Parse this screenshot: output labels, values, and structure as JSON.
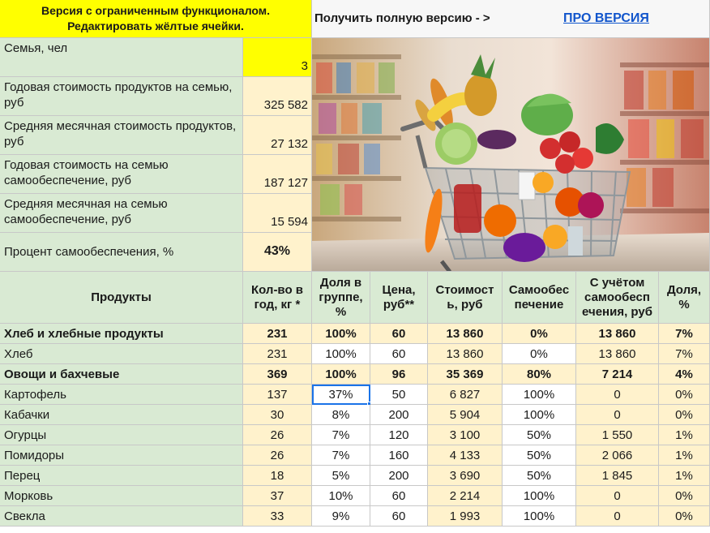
{
  "notice": {
    "line1": "Версия с ограниченным функционалом.",
    "line2": "Редактировать жёлтые ячейки."
  },
  "topbar": {
    "get_full": "Получить полную версию - >",
    "pro_link": "ПРО ВЕРСИЯ"
  },
  "summary": [
    {
      "label": "Семья, чел",
      "value": "3",
      "style": "yellow"
    },
    {
      "label": "Годовая стоимость продуктов на семью, руб",
      "value": "325 582",
      "style": "cream"
    },
    {
      "label": "Средняя месячная стоимость продуктов, руб",
      "value": "27 132",
      "style": "cream"
    },
    {
      "label": "Годовая стоимость на семью самообеспечение, руб",
      "value": "187 127",
      "style": "cream"
    },
    {
      "label": "Средняя месячная на семью самообеспечение, руб",
      "value": "15 594",
      "style": "cream"
    },
    {
      "label": "Процент самообеспечения, %",
      "value": "43%",
      "style": "cream"
    }
  ],
  "table": {
    "headers": [
      "Продукты",
      "Кол-во в год, кг *",
      "Доля в группе, %",
      "Цена, руб**",
      "Стоимост ь, руб",
      "Самообес печение",
      "С учётом самообесп ечения, руб",
      "Доля, %"
    ],
    "rows": [
      {
        "bold": true,
        "cells": [
          "Хлеб и хлебные продукты",
          "231",
          "100%",
          "60",
          "13 860",
          "0%",
          "13 860",
          "7%"
        ]
      },
      {
        "bold": false,
        "cells": [
          "Хлеб",
          "231",
          "100%",
          "60",
          "13 860",
          "0%",
          "13 860",
          "7%"
        ]
      },
      {
        "bold": true,
        "cells": [
          "Овощи и бахчевые",
          "369",
          "100%",
          "96",
          "35 369",
          "80%",
          "7 214",
          "4%"
        ]
      },
      {
        "bold": false,
        "cells": [
          "Картофель",
          "137",
          "37%",
          "50",
          "6 827",
          "100%",
          "0",
          "0%"
        ]
      },
      {
        "bold": false,
        "cells": [
          "Кабачки",
          "30",
          "8%",
          "200",
          "5 904",
          "100%",
          "0",
          "0%"
        ]
      },
      {
        "bold": false,
        "cells": [
          "Огурцы",
          "26",
          "7%",
          "120",
          "3 100",
          "50%",
          "1 550",
          "1%"
        ]
      },
      {
        "bold": false,
        "cells": [
          "Помидоры",
          "26",
          "7%",
          "160",
          "4 133",
          "50%",
          "2 066",
          "1%"
        ]
      },
      {
        "bold": false,
        "cells": [
          "Перец",
          "18",
          "5%",
          "200",
          "3 690",
          "50%",
          "1 845",
          "1%"
        ]
      },
      {
        "bold": false,
        "cells": [
          "Морковь",
          "37",
          "10%",
          "60",
          "2 214",
          "100%",
          "0",
          "0%"
        ]
      },
      {
        "bold": false,
        "cells": [
          "Свекла",
          "33",
          "9%",
          "60",
          "1 993",
          "100%",
          "0",
          "0%"
        ]
      }
    ],
    "selected": {
      "row": 3,
      "col": 2
    }
  },
  "colors": {
    "yellow": "#ffff00",
    "green": "#d9ead3",
    "cream": "#fff2cc",
    "link": "#1155cc",
    "selection": "#1a73e8"
  },
  "photo": {
    "subject": "shopping-cart-with-vegetables-and-fruits"
  }
}
